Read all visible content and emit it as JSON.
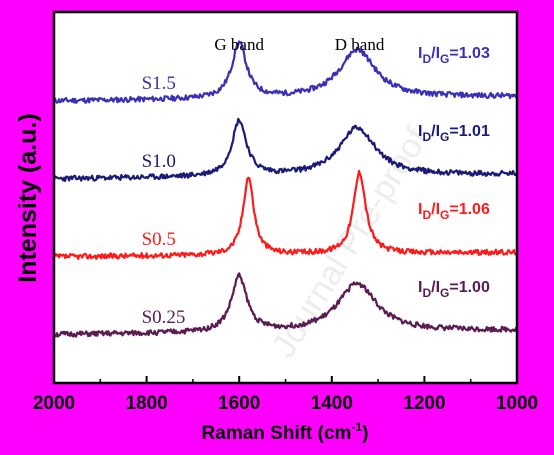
{
  "colors": {
    "background": "#ff00ff",
    "plot_bg": "#ffffff",
    "axis": "#000000"
  },
  "chart_data": {
    "type": "line",
    "xlabel": "Raman Shift (cm",
    "xlabel_sup": "-1",
    "xlabel_end": ")",
    "ylabel": "Intensity (a.u.)",
    "x_reversed": true,
    "xlim": [
      2000,
      1000
    ],
    "x_ticks": [
      2000,
      1800,
      1600,
      1400,
      1200,
      1000
    ],
    "y_ticks_visible": false,
    "grid": false,
    "legend": "none",
    "band_annotations": [
      {
        "text": "G band",
        "x": 1600
      },
      {
        "text": "D band",
        "x": 1340
      }
    ],
    "watermark": "Journal Pre-proof",
    "series": [
      {
        "name": "S1.5",
        "color": "#3a2fb8",
        "ratio_prefix": "I",
        "ratio_sub1": "D",
        "ratio_mid": "/I",
        "ratio_sub2": "G",
        "ratio_value": "=1.03",
        "base": 0.76,
        "g_pos": 1600,
        "g_height": 0.15,
        "g_width": 38,
        "d_pos": 1345,
        "d_height": 0.13,
        "d_width": 95,
        "seed": 11
      },
      {
        "name": "S1.0",
        "color": "#1a1a78",
        "ratio_prefix": "I",
        "ratio_sub1": "D",
        "ratio_mid": "/I",
        "ratio_sub2": "G",
        "ratio_value": "=1.01",
        "base": 0.55,
        "g_pos": 1600,
        "g_height": 0.15,
        "g_width": 38,
        "d_pos": 1345,
        "d_height": 0.13,
        "d_width": 95,
        "seed": 23
      },
      {
        "name": "S0.5",
        "color": "#ff1a1a",
        "ratio_prefix": "I",
        "ratio_sub1": "D",
        "ratio_mid": "/I",
        "ratio_sub2": "G",
        "ratio_value": "=1.06",
        "base": 0.34,
        "g_pos": 1580,
        "g_height": 0.21,
        "g_width": 28,
        "d_pos": 1340,
        "d_height": 0.22,
        "d_width": 32,
        "seed": 37
      },
      {
        "name": "S0.25",
        "color": "#5a1a52",
        "ratio_prefix": "I",
        "ratio_sub1": "D",
        "ratio_mid": "/I",
        "ratio_sub2": "G",
        "ratio_value": "=1.00",
        "base": 0.13,
        "g_pos": 1600,
        "g_height": 0.15,
        "g_width": 40,
        "d_pos": 1345,
        "d_height": 0.13,
        "d_width": 100,
        "seed": 51
      }
    ]
  }
}
